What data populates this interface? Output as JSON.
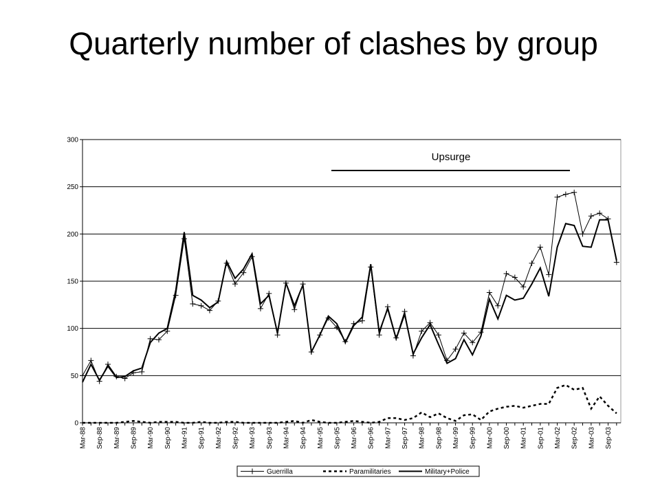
{
  "chart_data": {
    "type": "line",
    "title": "Quarterly number of clashes by group",
    "annotation": "Upsurge",
    "categories": [
      "Mar-88",
      null,
      "Sep-88",
      null,
      "Mar-89",
      null,
      "Sep-89",
      null,
      "Mar-90",
      null,
      "Sep-90",
      null,
      "Mar-91",
      null,
      "Sep-91",
      null,
      "Mar-92",
      null,
      "Sep-92",
      null,
      "Mar-93",
      null,
      "Sep-93",
      null,
      "Mar-94",
      null,
      "Sep-94",
      null,
      "Mar-95",
      null,
      "Sep-95",
      null,
      "Mar-96",
      null,
      "Sep-96",
      null,
      "Mar-97",
      null,
      "Sep-97",
      null,
      "Mar-98",
      null,
      "Sep-98",
      null,
      "Mar-99",
      null,
      "Sep-99",
      null,
      "Mar-00",
      null,
      "Sep-00",
      null,
      "Mar-01",
      null,
      "Sep-01",
      null,
      "Mar-02",
      null,
      "Sep-02",
      null,
      "Mar-03",
      null,
      "Sep-03",
      null
    ],
    "series": [
      {
        "name": "Guerrilla",
        "color": "#000000",
        "marker": "plus",
        "dashed": false,
        "values": [
          50,
          66,
          44,
          62,
          49,
          47,
          53,
          54,
          89,
          88,
          97,
          135,
          195,
          126,
          124,
          119,
          129,
          169,
          147,
          159,
          176,
          121,
          137,
          93,
          148,
          120,
          147,
          75,
          93,
          111,
          101,
          86,
          105,
          108,
          165,
          93,
          123,
          90,
          118,
          71,
          97,
          106,
          93,
          66,
          78,
          95,
          85,
          96,
          138,
          124,
          158,
          154,
          144,
          169,
          186,
          157,
          239,
          242,
          244,
          200,
          219,
          222,
          216,
          170
        ]
      },
      {
        "name": "Paramilitaries",
        "color": "#000000",
        "marker": "none",
        "dashed": true,
        "values": [
          0,
          0,
          0,
          0,
          0,
          1,
          2,
          1,
          0,
          1,
          1,
          1,
          0,
          0,
          1,
          0,
          0,
          1,
          1,
          0,
          0,
          0,
          0,
          0,
          1,
          2,
          0,
          3,
          1,
          0,
          0,
          1,
          2,
          1,
          0,
          1,
          5,
          5,
          3,
          5,
          11,
          6,
          10,
          5,
          2,
          8,
          9,
          3,
          12,
          15,
          17,
          18,
          16,
          18,
          20,
          20,
          37,
          40,
          35,
          37,
          15,
          28,
          18,
          10
        ]
      },
      {
        "name": "Military+Police",
        "color": "#000000",
        "marker": "none",
        "dashed": false,
        "values": [
          43,
          62,
          45,
          60,
          48,
          49,
          55,
          58,
          85,
          95,
          100,
          140,
          202,
          135,
          130,
          122,
          128,
          171,
          153,
          163,
          179,
          126,
          135,
          95,
          148,
          124,
          146,
          75,
          93,
          113,
          105,
          85,
          103,
          112,
          168,
          96,
          121,
          89,
          115,
          73,
          90,
          104,
          83,
          63,
          68,
          88,
          72,
          92,
          131,
          110,
          135,
          130,
          132,
          147,
          164,
          134,
          186,
          211,
          209,
          187,
          186,
          215,
          215,
          172
        ]
      }
    ],
    "ylim": [
      0,
      300
    ],
    "yticks": [
      0,
      50,
      100,
      150,
      200,
      250,
      300
    ],
    "grid": true
  }
}
